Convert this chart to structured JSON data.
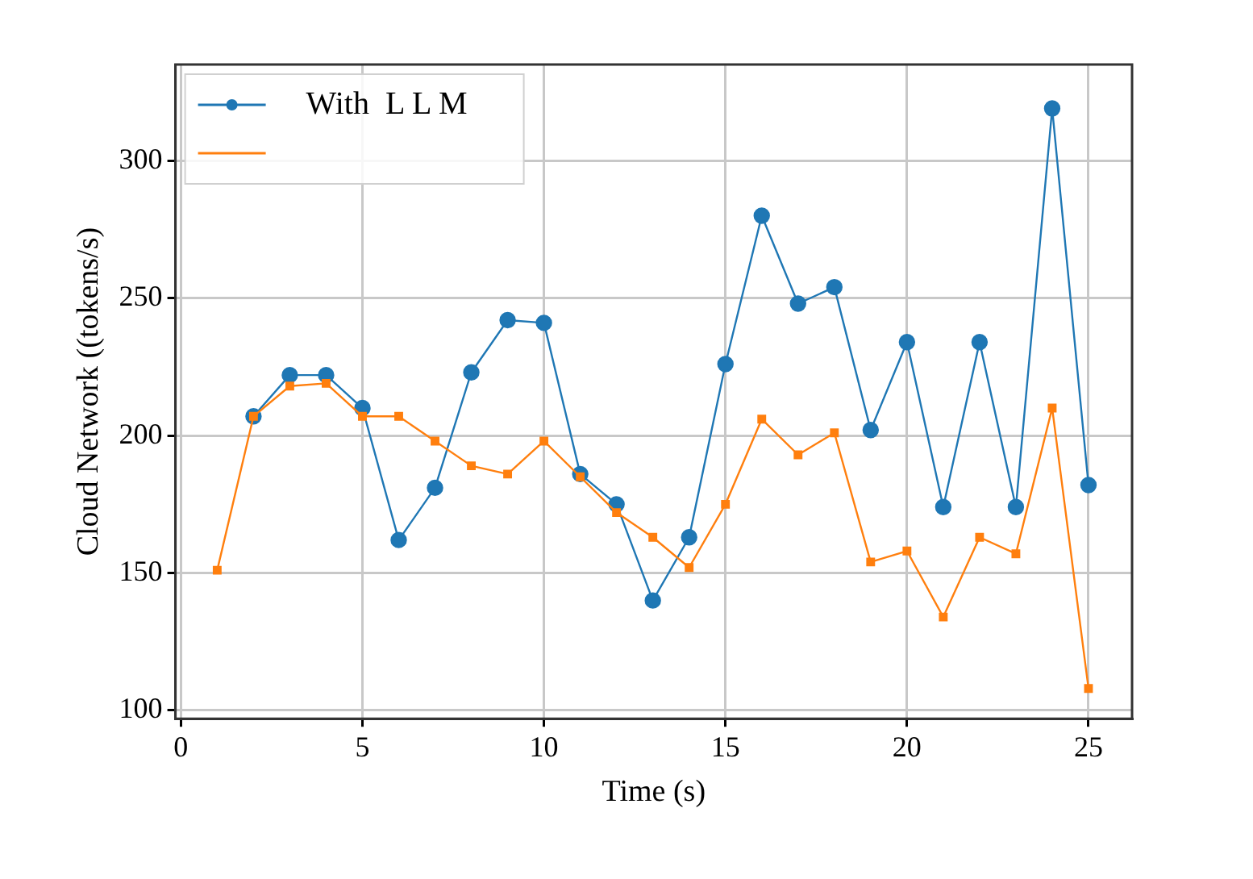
{
  "chart_data": {
    "type": "line",
    "xlabel": "Time (s)",
    "ylabel": "Cloud Network ((tokens/s)",
    "x": [
      1,
      2,
      3,
      4,
      5,
      6,
      7,
      8,
      9,
      10,
      11,
      12,
      13,
      14,
      15,
      16,
      17,
      18,
      19,
      20,
      21,
      22,
      23,
      24,
      25
    ],
    "series": [
      {
        "name": "With  L L M",
        "color": "#1f77b4",
        "marker": "circle",
        "values": [
          null,
          207,
          222,
          222,
          210,
          162,
          181,
          223,
          242,
          241,
          186,
          175,
          140,
          163,
          226,
          280,
          248,
          254,
          202,
          234,
          174,
          234,
          174,
          319,
          182
        ]
      },
      {
        "color": "#ff7f0e",
        "marker": "square",
        "values": [
          151,
          207,
          218,
          219,
          207,
          207,
          198,
          189,
          186,
          198,
          185,
          172,
          163,
          152,
          175,
          206,
          193,
          201,
          154,
          158,
          134,
          163,
          157,
          210,
          108
        ]
      }
    ],
    "xlim": [
      -0.15,
      26.2
    ],
    "xticks": [
      0,
      5,
      10,
      15,
      20,
      25
    ],
    "ylim": [
      97,
      335
    ],
    "yticks": [
      100,
      150,
      200,
      250,
      300
    ],
    "grid": true,
    "legend": "top left",
    "line_style": "solid"
  }
}
